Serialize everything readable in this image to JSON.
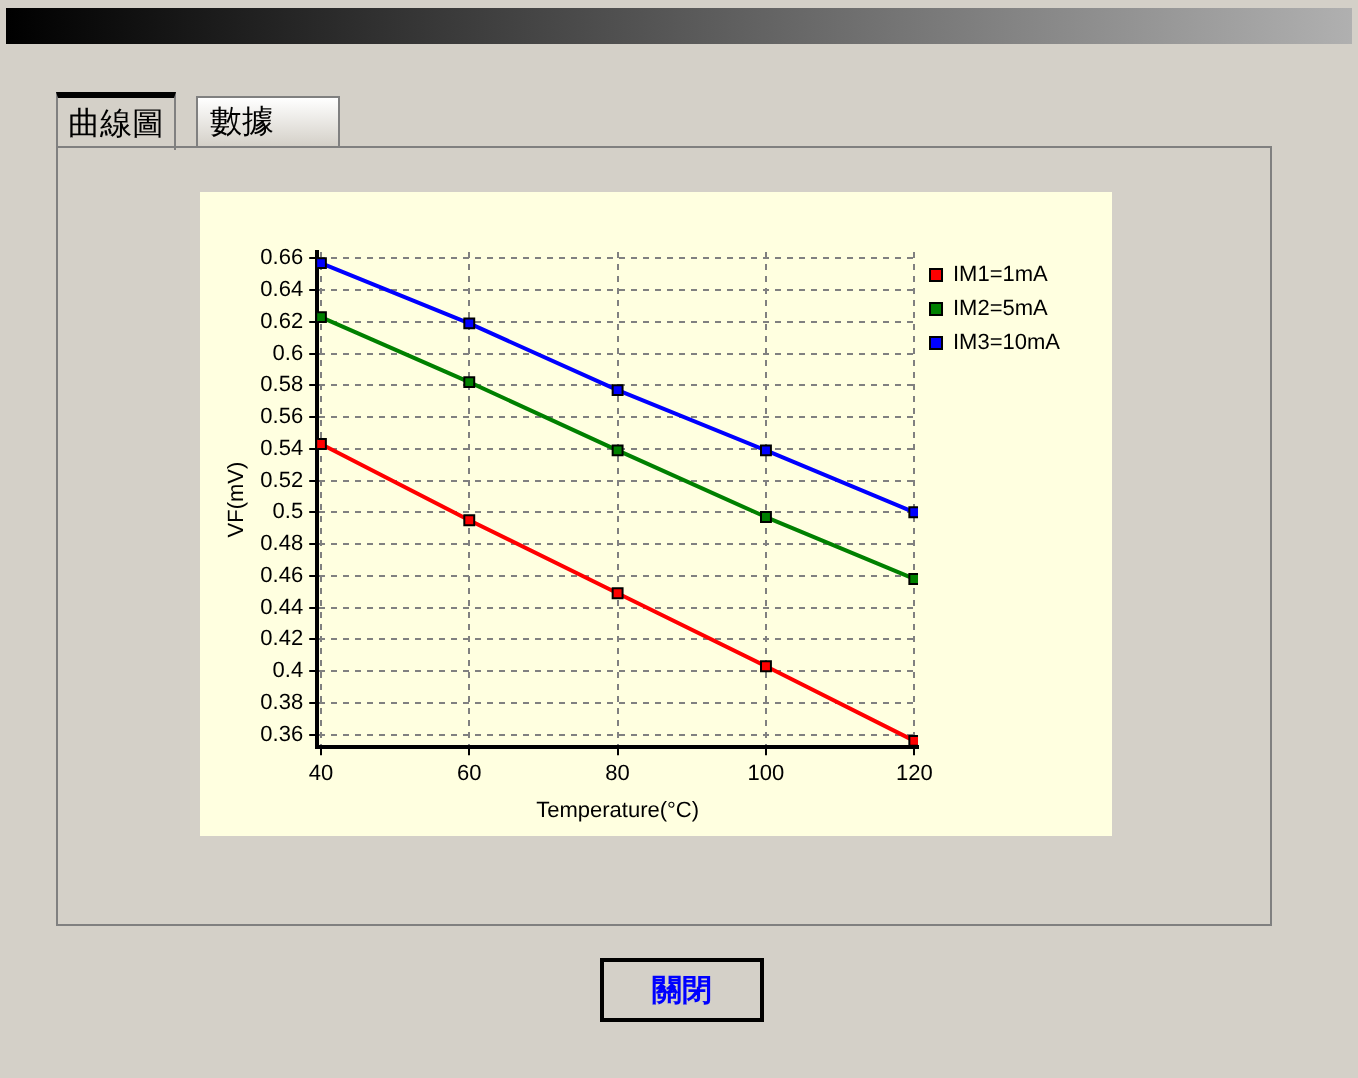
{
  "chart_data": {
    "type": "line",
    "xlabel": "Temperature(°C)",
    "ylabel": "VF(mV)",
    "x": [
      40,
      60,
      80,
      100,
      120
    ],
    "series": [
      {
        "name": "IM1=1mA",
        "color": "#ff0000",
        "values": [
          0.543,
          0.495,
          0.449,
          0.403,
          0.356
        ]
      },
      {
        "name": "IM2=5mA",
        "color": "#008000",
        "values": [
          0.623,
          0.582,
          0.539,
          0.497,
          0.458
        ]
      },
      {
        "name": "IM3=10mA",
        "color": "#0000ff",
        "values": [
          0.657,
          0.619,
          0.577,
          0.539,
          0.5
        ]
      }
    ],
    "xlim": [
      39.5,
      120.5
    ],
    "xticks": [
      40,
      60,
      80,
      100,
      120
    ],
    "ylim": [
      0.352,
      0.664
    ],
    "yticks": [
      0.36,
      0.38,
      0.4,
      0.42,
      0.44,
      0.46,
      0.48,
      0.5,
      0.52,
      0.54,
      0.56,
      0.58,
      0.6,
      0.62,
      0.64,
      0.66
    ],
    "grid": true,
    "legend": "top right",
    "marker": "square",
    "line_style": "solid",
    "annotations": [
      "曲線圖",
      "數據",
      "關閉"
    ]
  }
}
